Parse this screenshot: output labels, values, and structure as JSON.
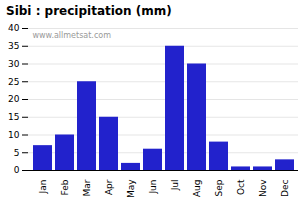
{
  "chart_data": {
    "type": "bar",
    "title": "Sibi : precipitation (mm)",
    "categories": [
      "Jan",
      "Feb",
      "Mar",
      "Apr",
      "May",
      "Jun",
      "Jul",
      "Aug",
      "Sep",
      "Oct",
      "Nov",
      "Dec"
    ],
    "values": [
      7,
      10,
      25,
      15,
      2,
      6,
      35,
      30,
      8,
      1,
      1,
      3
    ],
    "color": "#2222cc",
    "ylim": [
      0,
      40
    ],
    "yticks": [
      0,
      5,
      10,
      15,
      20,
      25,
      30,
      35,
      40
    ],
    "grid": true,
    "annotation": "www.allmetsat.com"
  }
}
